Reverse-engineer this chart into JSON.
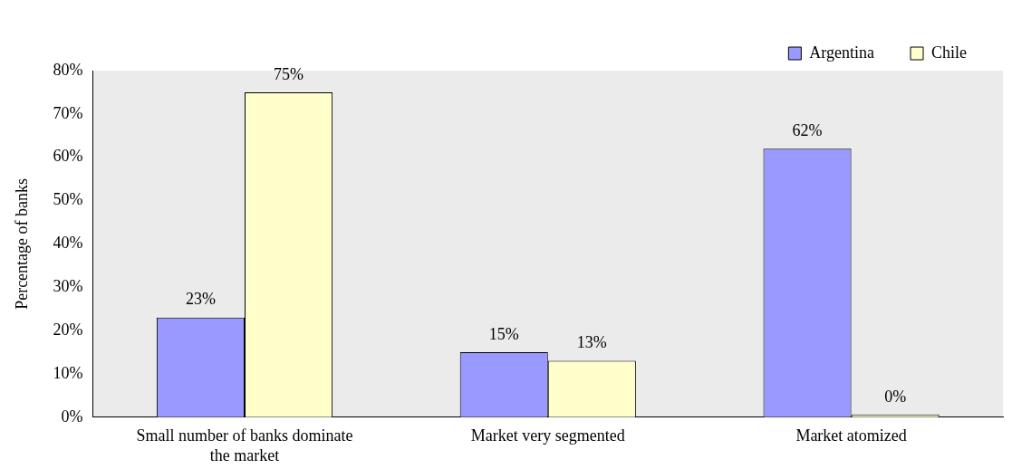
{
  "chart_data": {
    "type": "bar",
    "ylabel": "Percentage of banks",
    "categories": [
      "Small number of banks dominate the market",
      "Market very segmented",
      "Market atomized"
    ],
    "series": [
      {
        "name": "Argentina",
        "color": "#9999ff",
        "values": [
          23,
          15,
          62
        ],
        "value_labels": [
          "23%",
          "15%",
          "62%"
        ]
      },
      {
        "name": "Chile",
        "color": "#ffffcc",
        "values": [
          75,
          13,
          0
        ],
        "value_labels": [
          "75%",
          "13%",
          "0%"
        ]
      }
    ],
    "ylim": [
      0,
      80
    ],
    "yticks": [
      {
        "value": 0,
        "label": "0%"
      },
      {
        "value": 10,
        "label": "10%"
      },
      {
        "value": 20,
        "label": "20%"
      },
      {
        "value": 30,
        "label": "30%"
      },
      {
        "value": 40,
        "label": "40%"
      },
      {
        "value": 50,
        "label": "50%"
      },
      {
        "value": 60,
        "label": "60%"
      },
      {
        "value": 70,
        "label": "70%"
      },
      {
        "value": 80,
        "label": "80%"
      }
    ],
    "grid": false,
    "legend": "top right"
  }
}
